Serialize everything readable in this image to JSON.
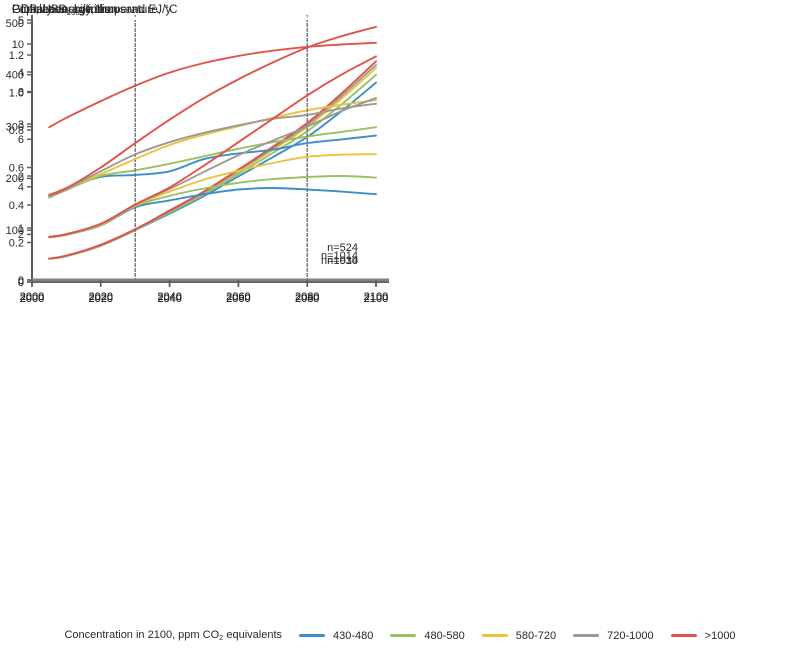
{
  "colors": {
    "blue": "#3e8ec6",
    "green": "#99c161",
    "yellow": "#eac23c",
    "gray": "#9b9a96",
    "red": "#e05348",
    "axis": "#58585a",
    "temp_axis": "#828282",
    "tick_text": "#2b2a29",
    "dotted_line": "#6a6b6d"
  },
  "legend": {
    "title_pre": "Concentration in 2100, ppm CO",
    "title_sub": "2",
    "title_post": " equivalents",
    "items": [
      {
        "label": "430-480",
        "color": "#3e8ec6"
      },
      {
        "label": "480-580",
        "color": "#99c161"
      },
      {
        "label": "580-720",
        "color": "#eac23c"
      },
      {
        "label": "720-1000",
        "color": "#9b9a96"
      },
      {
        "label": ">1000",
        "color": "#e05348"
      }
    ]
  },
  "chart_data": [
    {
      "id": "population",
      "type": "line",
      "title_pre": "Population, billions",
      "title_sub": "",
      "title_post": "",
      "n_label": "n=1014",
      "xlim": [
        2000,
        2100
      ],
      "ylim": [
        0,
        10
      ],
      "xticks": [
        2000,
        2020,
        2040,
        2060,
        2080,
        2100
      ],
      "yticks": [
        0,
        2,
        4,
        6,
        8,
        10
      ],
      "ydecimals": 0,
      "vlines": [
        2030,
        2080
      ],
      "grid": false,
      "x": [
        2005,
        2010,
        2020,
        2030,
        2040,
        2050,
        2060,
        2070,
        2080,
        2090,
        2100
      ],
      "series": [
        {
          "name": "all-scenarios",
          "color": "#e05348",
          "values": [
            6.5,
            6.9,
            7.6,
            8.25,
            8.8,
            9.2,
            9.5,
            9.72,
            9.88,
            9.98,
            10.05
          ]
        }
      ]
    },
    {
      "id": "gdp",
      "type": "line",
      "title_pre": "GDP, USD",
      "title_sub": "2005",
      "title_post": " trillion",
      "n_label": "n=930",
      "xlim": [
        2000,
        2100
      ],
      "ylim": [
        0,
        500
      ],
      "xticks": [
        2000,
        2020,
        2040,
        2060,
        2080,
        2100
      ],
      "yticks": [
        0,
        100,
        200,
        300,
        400,
        500
      ],
      "ydecimals": 0,
      "vlines": [
        2030,
        2080
      ],
      "grid": false,
      "x": [
        2005,
        2010,
        2020,
        2030,
        2040,
        2050,
        2060,
        2070,
        2080,
        2090,
        2100
      ],
      "series": [
        {
          "name": "430-480",
          "color": "#3e8ec6",
          "values": [
            45,
            50,
            70,
            100,
            132,
            166,
            204,
            241,
            280,
            330,
            385
          ]
        },
        {
          "name": "480-580",
          "color": "#99c161",
          "values": [
            45,
            50,
            70,
            100,
            134,
            169,
            209,
            249,
            291,
            343,
            400
          ]
        },
        {
          "name": "580-720",
          "color": "#eac23c",
          "values": [
            45,
            50,
            71,
            101,
            136,
            172,
            213,
            255,
            299,
            354,
            413
          ]
        },
        {
          "name": "720-1000",
          "color": "#9b9a96",
          "values": [
            45,
            50,
            71,
            101,
            136,
            173,
            215,
            258,
            303,
            359,
            419
          ]
        },
        {
          "name": ">1000",
          "color": "#e05348",
          "values": [
            45,
            51,
            72,
            102,
            138,
            175,
            217,
            261,
            307,
            364,
            426
          ]
        }
      ]
    },
    {
      "id": "primary-energy",
      "type": "line",
      "title_pre": "Primary energy, thousand EJ/y",
      "title_sub": "",
      "title_post": "",
      "n_label": "n=1014",
      "xlim": [
        2000,
        2100
      ],
      "ylim": [
        0,
        1.2
      ],
      "xticks": [
        2000,
        2020,
        2040,
        2060,
        2080,
        2100
      ],
      "yticks": [
        0,
        0.2,
        0.4,
        0.6,
        0.8,
        1.0,
        1.2
      ],
      "ydecimals": 1,
      "vlines": [
        2030,
        2080
      ],
      "grid": false,
      "x": [
        2005,
        2010,
        2020,
        2030,
        2040,
        2050,
        2060,
        2070,
        2080,
        2090,
        2100
      ],
      "series": [
        {
          "name": "430-480",
          "color": "#3e8ec6",
          "values": [
            0.45,
            0.49,
            0.55,
            0.56,
            0.58,
            0.645,
            0.675,
            0.695,
            0.73,
            0.75,
            0.77
          ]
        },
        {
          "name": "480-580",
          "color": "#99c161",
          "values": [
            0.44,
            0.48,
            0.555,
            0.585,
            0.62,
            0.66,
            0.7,
            0.735,
            0.765,
            0.79,
            0.815
          ]
        },
        {
          "name": "580-720",
          "color": "#eac23c",
          "values": [
            0.45,
            0.49,
            0.565,
            0.645,
            0.72,
            0.775,
            0.82,
            0.865,
            0.905,
            0.935,
            0.96
          ]
        },
        {
          "name": "720-1000",
          "color": "#9b9a96",
          "values": [
            0.445,
            0.485,
            0.58,
            0.67,
            0.735,
            0.785,
            0.825,
            0.86,
            0.88,
            0.915,
            0.94
          ]
        },
        {
          "name": ">1000",
          "color": "#e05348",
          "values": [
            0.455,
            0.49,
            0.6,
            0.73,
            0.855,
            0.97,
            1.07,
            1.16,
            1.24,
            1.3,
            1.35
          ]
        }
      ]
    },
    {
      "id": "temperature",
      "type": "line",
      "title_pre": "Global average temperature, °C",
      "title_sub": "",
      "title_post": "",
      "n_label": "n=524",
      "xlim": [
        2000,
        2100
      ],
      "ylim": [
        0,
        5
      ],
      "xticks": [
        2000,
        2020,
        2040,
        2060,
        2080,
        2100
      ],
      "yticks": [
        0,
        1,
        2,
        3,
        4,
        5
      ],
      "ydecimals": 0,
      "vlines": [
        2030,
        2080
      ],
      "grid": false,
      "x": [
        2005,
        2010,
        2020,
        2030,
        2040,
        2050,
        2060,
        2070,
        2080,
        2090,
        2100
      ],
      "series": [
        {
          "name": "430-480",
          "color": "#3e8ec6",
          "values": [
            0.82,
            0.87,
            1.05,
            1.4,
            1.53,
            1.65,
            1.74,
            1.77,
            1.74,
            1.7,
            1.65
          ]
        },
        {
          "name": "480-580",
          "color": "#99c161",
          "values": [
            0.82,
            0.87,
            1.06,
            1.42,
            1.62,
            1.76,
            1.87,
            1.94,
            1.98,
            2.0,
            1.97
          ]
        },
        {
          "name": "580-720",
          "color": "#eac23c",
          "values": [
            0.82,
            0.88,
            1.07,
            1.44,
            1.7,
            1.93,
            2.1,
            2.25,
            2.37,
            2.41,
            2.42
          ]
        },
        {
          "name": "720-1000",
          "color": "#9b9a96",
          "values": [
            0.83,
            0.88,
            1.08,
            1.45,
            1.75,
            2.08,
            2.4,
            2.68,
            2.95,
            3.25,
            3.5
          ]
        },
        {
          "name": ">1000",
          "color": "#e05348",
          "values": [
            0.83,
            0.88,
            1.08,
            1.45,
            1.78,
            2.2,
            2.65,
            3.1,
            3.55,
            3.95,
            4.3
          ]
        }
      ]
    }
  ]
}
